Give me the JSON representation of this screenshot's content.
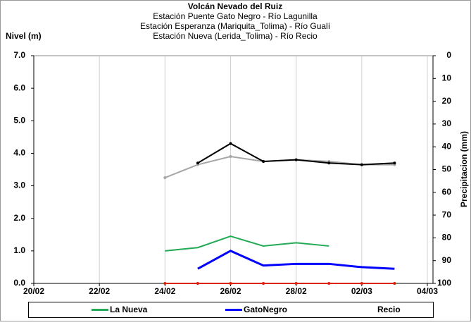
{
  "chart_data": {
    "type": "line",
    "title": "Volcán Nevado del Ruiz",
    "subtitle": [
      "Estación Puente Gato Negro - Río Lagunilla",
      "Estación Esperanza (Mariquita_Tolima) - Río Gualí",
      "Estación Nueva (Lerida_Tolima) - Río Recio"
    ],
    "ylabel": "Nivel (m)",
    "y2label": "Precipitacion (mm)",
    "x": [
      "24/02",
      "25/02",
      "26/02",
      "27/02",
      "28/02",
      "01/03",
      "02/03",
      "03/03"
    ],
    "xlim": [
      "20/02",
      "04/03"
    ],
    "xticks": [
      "20/02",
      "22/02",
      "24/02",
      "26/02",
      "28/02",
      "02/03",
      "04/03"
    ],
    "ylim": [
      0,
      7
    ],
    "yticks": [
      {
        "value": 0,
        "label": "0.0"
      },
      {
        "value": 1,
        "label": "1.0"
      },
      {
        "value": 2,
        "label": "2.0"
      },
      {
        "value": 3,
        "label": "3.0"
      },
      {
        "value": 4,
        "label": "4.0"
      },
      {
        "value": 5,
        "label": "5.0"
      },
      {
        "value": 6,
        "label": "6.0"
      },
      {
        "value": 7,
        "label": "7.0"
      }
    ],
    "y2lim": [
      0,
      100
    ],
    "y2_inverted": true,
    "y2ticks": [
      0,
      10,
      20,
      30,
      40,
      50,
      60,
      70,
      80,
      90,
      100
    ],
    "grid": true,
    "legend": "bottom",
    "series": [
      {
        "color": "#a6a6a6",
        "values": [
          3.25,
          3.65,
          3.9,
          3.75,
          3.8,
          3.75,
          3.65,
          3.65
        ]
      },
      {
        "color": "#000000",
        "values": [
          null,
          3.7,
          4.3,
          3.75,
          3.8,
          3.7,
          3.65,
          3.7
        ]
      },
      {
        "name": "La Nueva",
        "color": "#22aa55",
        "values": [
          1.0,
          1.1,
          1.45,
          1.15,
          1.25,
          1.15,
          null,
          null
        ]
      },
      {
        "name": "GatoNegro",
        "color": "#0000ff",
        "values": [
          null,
          0.45,
          1.0,
          0.55,
          0.6,
          0.6,
          0.5,
          0.45
        ]
      },
      {
        "name": "Recio",
        "color": "#ffffff",
        "values": [
          null,
          null,
          null,
          null,
          null,
          null,
          null,
          null
        ]
      },
      {
        "color": "#dd2200",
        "values": [
          0,
          0,
          0,
          0,
          0,
          0,
          0,
          0
        ]
      }
    ]
  }
}
